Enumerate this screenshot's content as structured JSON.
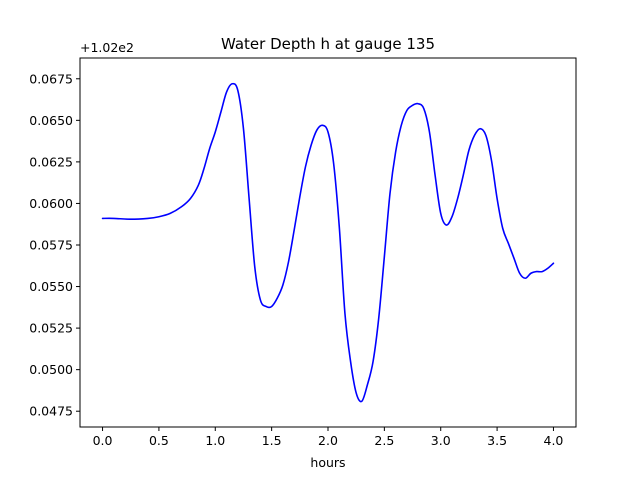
{
  "chart_data": {
    "type": "line",
    "title": "Water Depth h at gauge 135",
    "xlabel": "hours",
    "ylabel": "",
    "offset_text": "+1.02e2",
    "xlim": [
      -0.2,
      4.2
    ],
    "ylim": [
      0.04655,
      0.06875
    ],
    "xticks": [
      0.0,
      0.5,
      1.0,
      1.5,
      2.0,
      2.5,
      3.0,
      3.5,
      4.0
    ],
    "xtick_labels": [
      "0.0",
      "0.5",
      "1.0",
      "1.5",
      "2.0",
      "2.5",
      "3.0",
      "3.5",
      "4.0"
    ],
    "yticks": [
      0.0475,
      0.05,
      0.0525,
      0.055,
      0.0575,
      0.06,
      0.0625,
      0.065,
      0.0675
    ],
    "ytick_labels": [
      "0.0475",
      "0.0500",
      "0.0525",
      "0.0550",
      "0.0575",
      "0.0600",
      "0.0625",
      "0.0650",
      "0.0675"
    ],
    "grid": false,
    "line_color": "#0000ff",
    "series": [
      {
        "x": [
          0.0,
          0.1,
          0.25,
          0.4,
          0.5,
          0.6,
          0.7,
          0.78,
          0.85,
          0.9,
          0.95,
          1.0,
          1.05,
          1.1,
          1.15,
          1.2,
          1.25,
          1.3,
          1.35,
          1.4,
          1.45,
          1.5,
          1.55,
          1.6,
          1.65,
          1.7,
          1.75,
          1.8,
          1.85,
          1.9,
          1.95,
          2.0,
          2.05,
          2.1,
          2.15,
          2.2,
          2.25,
          2.3,
          2.35,
          2.4,
          2.45,
          2.5,
          2.55,
          2.6,
          2.65,
          2.7,
          2.75,
          2.8,
          2.85,
          2.9,
          2.95,
          3.0,
          3.05,
          3.1,
          3.15,
          3.2,
          3.25,
          3.3,
          3.35,
          3.4,
          3.45,
          3.5,
          3.55,
          3.6,
          3.65,
          3.7,
          3.75,
          3.8,
          3.85,
          3.9,
          3.95,
          4.0
        ],
        "values": [
          0.0591,
          0.0591,
          0.05905,
          0.0591,
          0.0592,
          0.0594,
          0.0598,
          0.0603,
          0.0611,
          0.0621,
          0.0633,
          0.0643,
          0.0655,
          0.0667,
          0.0672,
          0.0668,
          0.0645,
          0.0603,
          0.0562,
          0.0542,
          0.0538,
          0.0538,
          0.0543,
          0.0551,
          0.0565,
          0.0584,
          0.0604,
          0.0622,
          0.0635,
          0.0644,
          0.0647,
          0.0643,
          0.0624,
          0.0586,
          0.0534,
          0.0505,
          0.0486,
          0.0481,
          0.0491,
          0.0505,
          0.0531,
          0.0568,
          0.0606,
          0.0631,
          0.0647,
          0.0656,
          0.0659,
          0.066,
          0.0657,
          0.0643,
          0.0617,
          0.0594,
          0.0587,
          0.0592,
          0.0603,
          0.0617,
          0.0632,
          0.0641,
          0.0645,
          0.0641,
          0.0626,
          0.0603,
          0.0585,
          0.0576,
          0.0567,
          0.0558,
          0.0555,
          0.0558,
          0.0559,
          0.0559,
          0.0561,
          0.0564
        ]
      }
    ]
  }
}
